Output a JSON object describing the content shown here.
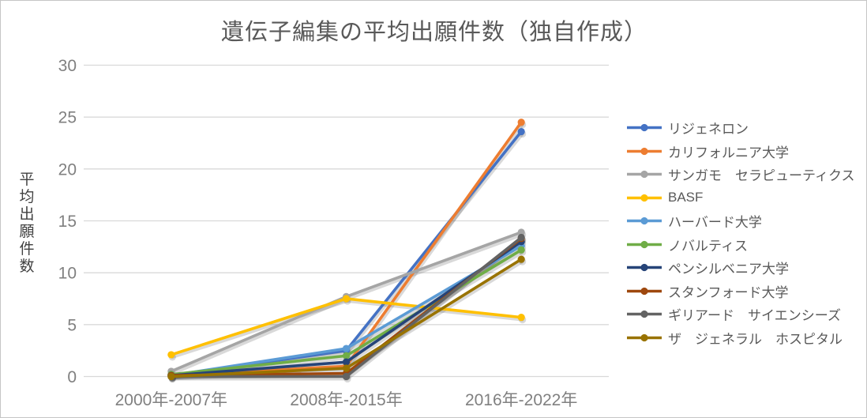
{
  "frame": {
    "background": "#ffffff",
    "border_color": "#c6c6c6"
  },
  "colors": {
    "title_text": "#595959",
    "axis_tick_text": "#808080",
    "y_axis_title_text": "#404040",
    "legend_text": "#595959",
    "gridline": "#d9d9d9"
  },
  "chart_data": {
    "type": "line",
    "title": "遺伝子編集の平均出願件数（独自作成）",
    "ylabel": "平均出願件数",
    "xlabel": "",
    "categories": [
      "2000年-2007年",
      "2008年-2015年",
      "2016年-2022年"
    ],
    "ylim": [
      0,
      30
    ],
    "yticks": [
      0,
      5,
      10,
      15,
      20,
      25,
      30
    ],
    "grid": "horizontal",
    "legend_position": "right",
    "markers": "circle",
    "series": [
      {
        "name": "リジェネロン",
        "color": "#4472C4",
        "values": [
          0.1,
          2.5,
          23.6
        ]
      },
      {
        "name": "カリフォルニア大学",
        "color": "#ED7D31",
        "values": [
          0.1,
          1.0,
          24.5
        ]
      },
      {
        "name": "サンガモ　セラピューティクス",
        "color": "#A5A5A5",
        "values": [
          0.5,
          7.7,
          13.9
        ]
      },
      {
        "name": "BASF",
        "color": "#FFC000",
        "values": [
          2.1,
          7.5,
          5.7
        ]
      },
      {
        "name": "ハーバード大学",
        "color": "#5B9BD5",
        "values": [
          0.1,
          2.7,
          12.6
        ]
      },
      {
        "name": "ノバルティス",
        "color": "#70AD47",
        "values": [
          0.2,
          2.0,
          12.2
        ]
      },
      {
        "name": "ペンシルベニア大学",
        "color": "#264478",
        "values": [
          0.1,
          1.4,
          13.0
        ]
      },
      {
        "name": "スタンフォード大学",
        "color": "#9E480E",
        "values": [
          0.1,
          0.3,
          13.3
        ]
      },
      {
        "name": "ギリアード　サイエンシーズ",
        "color": "#636363",
        "values": [
          0.0,
          0.0,
          13.4
        ]
      },
      {
        "name": "ザ　ジェネラル　ホスピタル",
        "color": "#997300",
        "values": [
          0.0,
          0.8,
          11.3
        ]
      }
    ]
  }
}
